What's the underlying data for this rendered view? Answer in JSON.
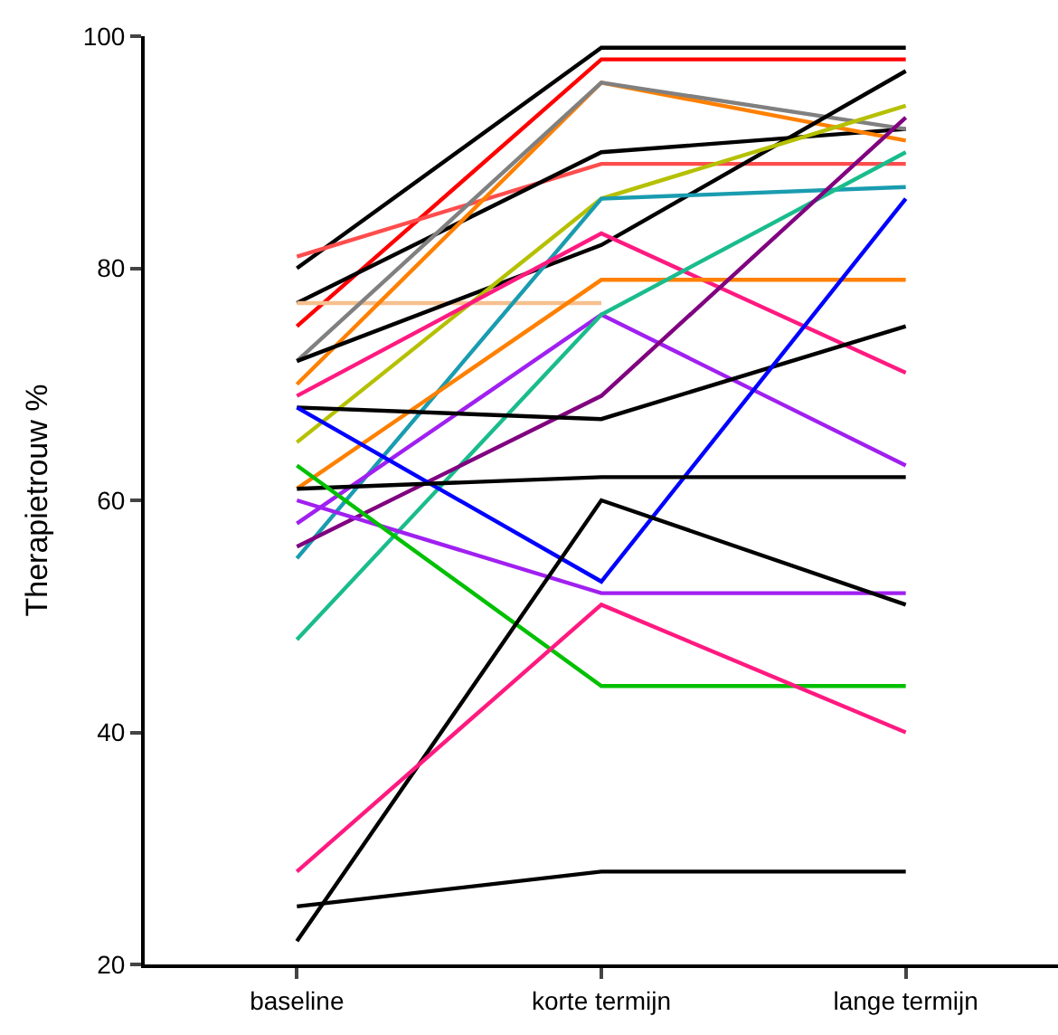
{
  "chart_data": {
    "type": "line",
    "ylabel": "Therapietrouw %",
    "categories": [
      "baseline",
      "korte termijn",
      "lange termijn"
    ],
    "ylim": [
      20,
      100
    ],
    "yticks": [
      20,
      40,
      60,
      80,
      100
    ],
    "marker": "none",
    "line_style": "solid",
    "series": [
      {
        "color": "#000000",
        "values": [
          80,
          99,
          99
        ]
      },
      {
        "color": "#ff0000",
        "values": [
          75,
          98,
          98
        ]
      },
      {
        "color": "#ff4d4d",
        "values": [
          81,
          89,
          89
        ]
      },
      {
        "color": "#000000",
        "values": [
          77,
          90,
          92
        ]
      },
      {
        "color": "#f5c08f",
        "values": [
          77,
          77,
          null
        ]
      },
      {
        "color": "#ff8000",
        "values": [
          70,
          96,
          91
        ]
      },
      {
        "color": "#808080",
        "values": [
          72,
          96,
          92
        ]
      },
      {
        "color": "#000000",
        "values": [
          72,
          82,
          97
        ]
      },
      {
        "color": "#b5c000",
        "values": [
          65,
          86,
          94
        ]
      },
      {
        "color": "#1a9cb0",
        "values": [
          55,
          86,
          87
        ]
      },
      {
        "color": "#ff1a80",
        "values": [
          69,
          83,
          71
        ]
      },
      {
        "color": "#ff8000",
        "values": [
          61,
          79,
          79
        ]
      },
      {
        "color": "#a020f0",
        "values": [
          58,
          76,
          63
        ]
      },
      {
        "color": "#1abc8c",
        "values": [
          48,
          76,
          90
        ]
      },
      {
        "color": "#800080",
        "values": [
          56,
          69,
          93
        ]
      },
      {
        "color": "#000000",
        "values": [
          68,
          67,
          75
        ]
      },
      {
        "color": "#0000ff",
        "values": [
          68,
          53,
          86
        ]
      },
      {
        "color": "#000000",
        "values": [
          61,
          62,
          62
        ]
      },
      {
        "color": "#a020f0",
        "values": [
          60,
          52,
          52
        ]
      },
      {
        "color": "#00c000",
        "values": [
          63,
          44,
          44
        ]
      },
      {
        "color": "#000000",
        "values": [
          22,
          60,
          51
        ]
      },
      {
        "color": "#ff1a80",
        "values": [
          28,
          51,
          40
        ]
      },
      {
        "color": "#000000",
        "values": [
          25,
          28,
          28
        ]
      }
    ]
  }
}
